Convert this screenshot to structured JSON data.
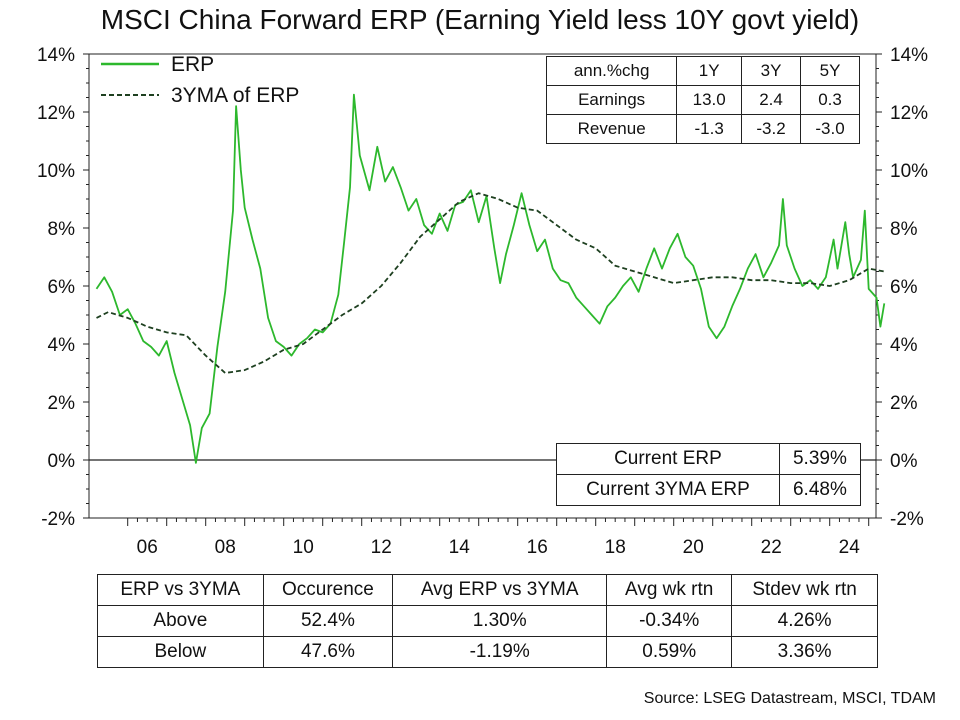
{
  "title": "MSCI China Forward ERP (Earning Yield less 10Y govt yield)",
  "source": "Source: LSEG Datastream, MSCI, TDAM",
  "colors": {
    "erp": "#2db82d",
    "ma": "#1e4020",
    "axis": "#222222"
  },
  "chart_data": {
    "type": "line",
    "title": "MSCI China Forward ERP (Earning Yield less 10Y govt yield)",
    "x_ticks": [
      "06",
      "08",
      "10",
      "12",
      "14",
      "16",
      "18",
      "20",
      "22",
      "24"
    ],
    "y_ticks": [
      "14%",
      "12%",
      "10%",
      "8%",
      "6%",
      "4%",
      "2%",
      "0%",
      "-2%"
    ],
    "xlim": [
      2005.2,
      2025.6
    ],
    "ylim": [
      -2,
      14
    ],
    "legend_placement": "top-left",
    "series": [
      {
        "name": "ERP",
        "style": "solid",
        "points": [
          [
            2005.2,
            5.9
          ],
          [
            2005.4,
            6.3
          ],
          [
            2005.6,
            5.8
          ],
          [
            2005.8,
            5.0
          ],
          [
            2006.0,
            5.2
          ],
          [
            2006.2,
            4.7
          ],
          [
            2006.4,
            4.1
          ],
          [
            2006.6,
            3.9
          ],
          [
            2006.8,
            3.6
          ],
          [
            2007.0,
            4.1
          ],
          [
            2007.2,
            3.0
          ],
          [
            2007.4,
            2.1
          ],
          [
            2007.6,
            1.2
          ],
          [
            2007.75,
            -0.1
          ],
          [
            2007.9,
            1.1
          ],
          [
            2008.1,
            1.6
          ],
          [
            2008.3,
            3.9
          ],
          [
            2008.5,
            5.8
          ],
          [
            2008.7,
            8.6
          ],
          [
            2008.78,
            12.2
          ],
          [
            2008.9,
            10.0
          ],
          [
            2009.0,
            8.7
          ],
          [
            2009.2,
            7.6
          ],
          [
            2009.4,
            6.6
          ],
          [
            2009.6,
            4.9
          ],
          [
            2009.8,
            4.1
          ],
          [
            2010.0,
            3.9
          ],
          [
            2010.2,
            3.6
          ],
          [
            2010.4,
            4.0
          ],
          [
            2010.6,
            4.2
          ],
          [
            2010.8,
            4.5
          ],
          [
            2011.0,
            4.4
          ],
          [
            2011.2,
            4.7
          ],
          [
            2011.4,
            5.7
          ],
          [
            2011.55,
            7.5
          ],
          [
            2011.7,
            9.4
          ],
          [
            2011.8,
            12.6
          ],
          [
            2011.95,
            10.5
          ],
          [
            2012.2,
            9.3
          ],
          [
            2012.4,
            10.8
          ],
          [
            2012.6,
            9.6
          ],
          [
            2012.8,
            10.1
          ],
          [
            2013.0,
            9.4
          ],
          [
            2013.2,
            8.6
          ],
          [
            2013.4,
            9.0
          ],
          [
            2013.6,
            8.1
          ],
          [
            2013.8,
            7.8
          ],
          [
            2014.0,
            8.5
          ],
          [
            2014.2,
            7.9
          ],
          [
            2014.4,
            8.8
          ],
          [
            2014.6,
            8.9
          ],
          [
            2014.8,
            9.3
          ],
          [
            2015.0,
            8.2
          ],
          [
            2015.2,
            9.1
          ],
          [
            2015.4,
            7.3
          ],
          [
            2015.55,
            6.1
          ],
          [
            2015.7,
            7.1
          ],
          [
            2015.9,
            8.1
          ],
          [
            2016.1,
            9.2
          ],
          [
            2016.3,
            8.1
          ],
          [
            2016.5,
            7.2
          ],
          [
            2016.7,
            7.6
          ],
          [
            2016.9,
            6.6
          ],
          [
            2017.1,
            6.2
          ],
          [
            2017.3,
            6.1
          ],
          [
            2017.5,
            5.6
          ],
          [
            2017.7,
            5.3
          ],
          [
            2017.9,
            5.0
          ],
          [
            2018.1,
            4.7
          ],
          [
            2018.3,
            5.3
          ],
          [
            2018.5,
            5.6
          ],
          [
            2018.7,
            6.0
          ],
          [
            2018.9,
            6.3
          ],
          [
            2019.1,
            5.8
          ],
          [
            2019.3,
            6.6
          ],
          [
            2019.5,
            7.3
          ],
          [
            2019.7,
            6.6
          ],
          [
            2019.9,
            7.3
          ],
          [
            2020.1,
            7.8
          ],
          [
            2020.3,
            7.0
          ],
          [
            2020.5,
            6.7
          ],
          [
            2020.7,
            5.9
          ],
          [
            2020.9,
            4.6
          ],
          [
            2021.1,
            4.2
          ],
          [
            2021.3,
            4.6
          ],
          [
            2021.5,
            5.3
          ],
          [
            2021.7,
            5.9
          ],
          [
            2021.9,
            6.6
          ],
          [
            2022.1,
            7.1
          ],
          [
            2022.3,
            6.3
          ],
          [
            2022.5,
            6.8
          ],
          [
            2022.7,
            7.4
          ],
          [
            2022.8,
            9.0
          ],
          [
            2022.9,
            7.4
          ],
          [
            2023.1,
            6.6
          ],
          [
            2023.3,
            6.0
          ],
          [
            2023.5,
            6.2
          ],
          [
            2023.7,
            5.9
          ],
          [
            2023.9,
            6.3
          ],
          [
            2024.1,
            7.6
          ],
          [
            2024.2,
            6.6
          ],
          [
            2024.4,
            8.2
          ],
          [
            2024.5,
            7.1
          ],
          [
            2024.6,
            6.3
          ],
          [
            2024.8,
            6.9
          ],
          [
            2024.9,
            8.6
          ],
          [
            2025.0,
            5.9
          ],
          [
            2025.2,
            5.6
          ],
          [
            2025.3,
            4.6
          ],
          [
            2025.4,
            5.4
          ]
        ]
      },
      {
        "name": "3YMA of ERP",
        "style": "dashed",
        "points": [
          [
            2005.2,
            4.9
          ],
          [
            2005.5,
            5.1
          ],
          [
            2006.0,
            4.9
          ],
          [
            2006.5,
            4.6
          ],
          [
            2007.0,
            4.4
          ],
          [
            2007.5,
            4.3
          ],
          [
            2008.0,
            3.6
          ],
          [
            2008.5,
            3.0
          ],
          [
            2009.0,
            3.1
          ],
          [
            2009.5,
            3.4
          ],
          [
            2010.0,
            3.8
          ],
          [
            2010.5,
            4.0
          ],
          [
            2011.0,
            4.5
          ],
          [
            2011.5,
            5.0
          ],
          [
            2012.0,
            5.4
          ],
          [
            2012.5,
            6.0
          ],
          [
            2013.0,
            6.8
          ],
          [
            2013.5,
            7.7
          ],
          [
            2014.0,
            8.3
          ],
          [
            2014.5,
            8.9
          ],
          [
            2015.0,
            9.2
          ],
          [
            2015.5,
            9.0
          ],
          [
            2016.0,
            8.7
          ],
          [
            2016.5,
            8.6
          ],
          [
            2017.0,
            8.1
          ],
          [
            2017.5,
            7.6
          ],
          [
            2018.0,
            7.3
          ],
          [
            2018.5,
            6.7
          ],
          [
            2019.0,
            6.5
          ],
          [
            2019.5,
            6.3
          ],
          [
            2020.0,
            6.1
          ],
          [
            2020.5,
            6.2
          ],
          [
            2021.0,
            6.3
          ],
          [
            2021.5,
            6.3
          ],
          [
            2022.0,
            6.2
          ],
          [
            2022.5,
            6.2
          ],
          [
            2023.0,
            6.1
          ],
          [
            2023.5,
            6.1
          ],
          [
            2024.0,
            6.0
          ],
          [
            2024.5,
            6.2
          ],
          [
            2025.0,
            6.6
          ],
          [
            2025.4,
            6.5
          ]
        ]
      }
    ]
  },
  "legend": [
    {
      "label": "ERP"
    },
    {
      "label": "3YMA of ERP"
    }
  ],
  "growth_table": {
    "header": [
      "ann.%chg",
      "1Y",
      "3Y",
      "5Y"
    ],
    "rows": [
      [
        "Earnings",
        "13.0",
        "2.4",
        "0.3"
      ],
      [
        "Revenue",
        "-1.3",
        "-3.2",
        "-3.0"
      ]
    ]
  },
  "current_table": {
    "rows": [
      [
        "Current ERP",
        "5.39%"
      ],
      [
        "Current 3YMA ERP",
        "6.48%"
      ]
    ]
  },
  "stats_table": {
    "header": [
      "ERP vs 3YMA",
      "Occurence",
      "Avg ERP vs 3YMA",
      "Avg wk rtn",
      "Stdev wk rtn"
    ],
    "rows": [
      [
        "Above",
        "52.4%",
        "1.30%",
        "-0.34%",
        "4.26%"
      ],
      [
        "Below",
        "47.6%",
        "-1.19%",
        "0.59%",
        "3.36%"
      ]
    ]
  }
}
